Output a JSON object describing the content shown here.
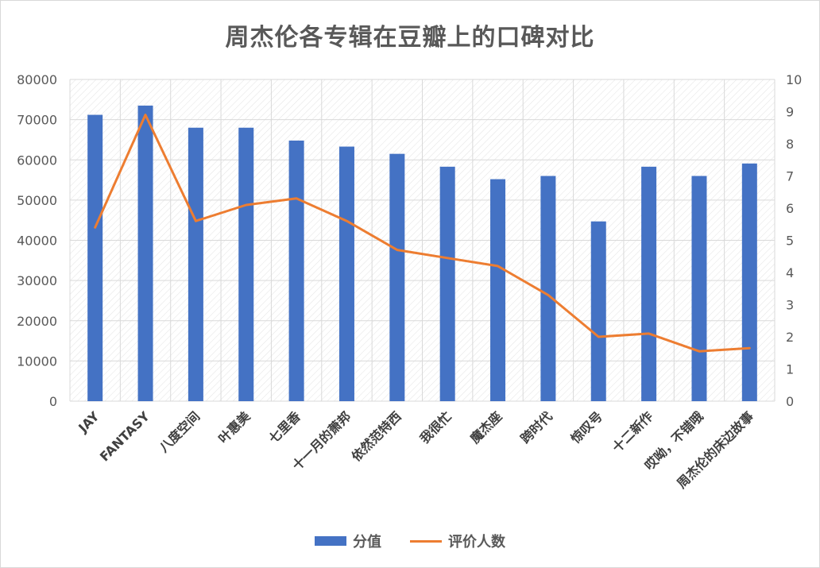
{
  "chart_data": {
    "type": "bar",
    "title": "周杰伦各专辑在豆瓣上的口碑对比",
    "categories": [
      "JAY",
      "FANTASY",
      "八度空间",
      "叶惠美",
      "七里香",
      "十一月的萧邦",
      "依然范特西",
      "我很忙",
      "魔杰座",
      "跨时代",
      "惊叹号",
      "十二新作",
      "哎呦，不错哦",
      "周杰伦的床边故事"
    ],
    "series": [
      {
        "name": "分值",
        "type": "bar",
        "axis": "left",
        "color": "#4472c4",
        "values": [
          71200,
          73500,
          68000,
          68000,
          64800,
          63300,
          61500,
          58300,
          55200,
          56000,
          44700,
          58300,
          56000,
          59100
        ]
      },
      {
        "name": "评价人数",
        "type": "line",
        "axis": "right",
        "color": "#ed7d31",
        "values": [
          5.4,
          8.9,
          5.6,
          6.1,
          6.3,
          5.6,
          4.7,
          4.45,
          4.2,
          3.3,
          2.0,
          2.1,
          1.55,
          1.65
        ]
      }
    ],
    "y_left": {
      "min": 0,
      "max": 80000,
      "ticks": [
        0,
        10000,
        20000,
        30000,
        40000,
        50000,
        60000,
        70000,
        80000
      ]
    },
    "y_right": {
      "min": 0,
      "max": 10,
      "ticks": [
        0,
        1,
        2,
        3,
        4,
        5,
        6,
        7,
        8,
        9,
        10
      ]
    },
    "grid": true,
    "legend": "bottom",
    "legend_items": [
      "分值",
      "评价人数"
    ]
  }
}
